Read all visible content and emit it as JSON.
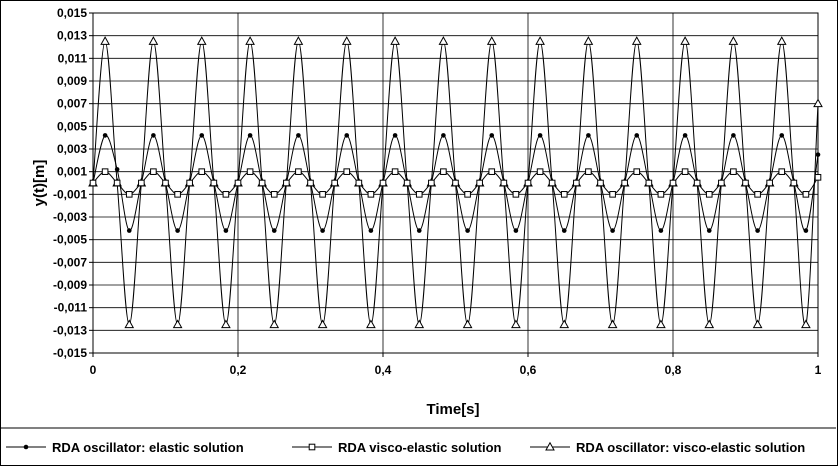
{
  "chart_data": {
    "type": "line",
    "xlabel": "Time[s]",
    "ylabel": "y(t)[m]",
    "xlim": [
      0,
      1
    ],
    "ylim": [
      -0.015,
      0.015
    ],
    "grid": true,
    "legend_position": "bottom",
    "x_ticks": [
      "0",
      "0,2",
      "0,4",
      "0,6",
      "0,8",
      "1"
    ],
    "y_ticks": [
      "0,015",
      "0,013",
      "0,011",
      "0,009",
      "0,007",
      "0,005",
      "0,003",
      "0,001",
      "-0,001",
      "-0,003",
      "-0,005",
      "-0,007",
      "-0,009",
      "-0,011",
      "-0,013",
      "-0,015"
    ],
    "x": [
      0,
      0.0167,
      0.0333,
      0.05,
      0.0667,
      0.0833,
      0.1,
      0.1167,
      0.1333,
      0.15,
      0.1667,
      0.1833,
      0.2,
      0.2167,
      0.2333,
      0.25,
      0.2667,
      0.2833,
      0.3,
      0.3167,
      0.3333,
      0.35,
      0.3667,
      0.3833,
      0.4,
      0.4167,
      0.4333,
      0.45,
      0.4667,
      0.4833,
      0.5,
      0.5167,
      0.5333,
      0.55,
      0.5667,
      0.5833,
      0.6,
      0.6167,
      0.6333,
      0.65,
      0.6667,
      0.6833,
      0.7,
      0.7167,
      0.7333,
      0.75,
      0.7667,
      0.7833,
      0.8,
      0.8167,
      0.8333,
      0.85,
      0.8667,
      0.8833,
      0.9,
      0.9167,
      0.9333,
      0.95,
      0.9667,
      0.9833,
      1
    ],
    "series": [
      {
        "name": "RDA oscillator: elastic solution",
        "marker": "dot",
        "values": [
          0,
          0.0042,
          0.0012,
          -0.0042,
          0,
          0.0042,
          0,
          -0.0042,
          0,
          0.0042,
          0,
          -0.0042,
          0,
          0.0042,
          0,
          -0.0042,
          0,
          0.0042,
          0,
          -0.0042,
          0,
          0.0042,
          0,
          -0.0042,
          0,
          0.0042,
          0,
          -0.0042,
          0,
          0.0042,
          0,
          -0.0042,
          0,
          0.0042,
          0,
          -0.0042,
          0,
          0.0042,
          0,
          -0.0042,
          0,
          0.0042,
          0,
          -0.0042,
          0,
          0.0042,
          0,
          -0.0042,
          0,
          0.0042,
          0,
          -0.0042,
          0,
          0.0042,
          0,
          -0.0042,
          0,
          0.0042,
          0,
          -0.0042,
          0.0025
        ]
      },
      {
        "name": "RDA visco-elastic solution",
        "marker": "square",
        "values": [
          0,
          0.001,
          0,
          -0.001,
          0,
          0.001,
          0,
          -0.001,
          0,
          0.001,
          0,
          -0.001,
          0,
          0.001,
          0,
          -0.001,
          0,
          0.001,
          0,
          -0.001,
          0,
          0.001,
          0,
          -0.001,
          0,
          0.001,
          0,
          -0.001,
          0,
          0.001,
          0,
          -0.001,
          0,
          0.001,
          0,
          -0.001,
          0,
          0.001,
          0,
          -0.001,
          0,
          0.001,
          0,
          -0.001,
          0,
          0.001,
          0,
          -0.001,
          0,
          0.001,
          0,
          -0.001,
          0,
          0.001,
          0,
          -0.001,
          0,
          0.001,
          0,
          -0.001,
          0.0005
        ]
      },
      {
        "name": "RDA oscillator: visco-elastic solution",
        "marker": "triangle",
        "values": [
          0,
          0.0125,
          0,
          -0.0125,
          0,
          0.0125,
          0,
          -0.0125,
          0,
          0.0125,
          0,
          -0.0125,
          0,
          0.0125,
          0,
          -0.0125,
          0,
          0.0125,
          0,
          -0.0125,
          0,
          0.0125,
          0,
          -0.0125,
          0,
          0.0125,
          0,
          -0.0125,
          0,
          0.0125,
          0,
          -0.0125,
          0,
          0.0125,
          0,
          -0.0125,
          0,
          0.0125,
          0,
          -0.0125,
          0,
          0.0125,
          0,
          -0.0125,
          0,
          0.0125,
          0,
          -0.0125,
          0,
          0.0125,
          0,
          -0.0125,
          0,
          0.0125,
          0,
          -0.0125,
          0,
          0.0125,
          0,
          -0.0125,
          0.007
        ]
      }
    ]
  }
}
